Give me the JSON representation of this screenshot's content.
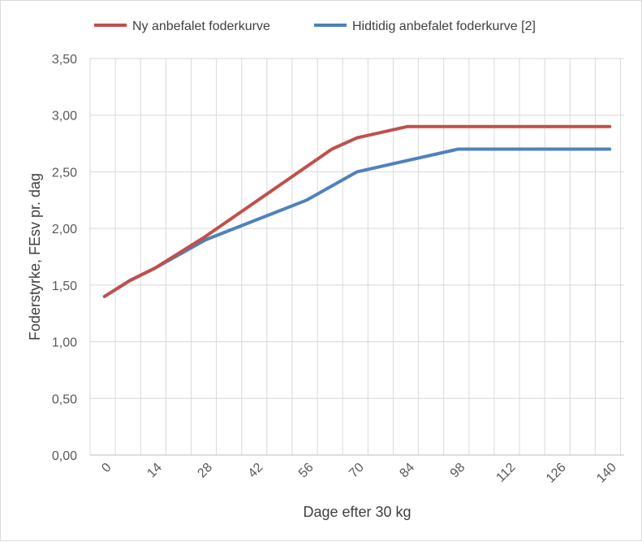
{
  "chart_data": {
    "type": "line",
    "xlabel": "Dage efter 30 kg",
    "ylabel": "Foderstyrke, FEsv pr. dag",
    "xlim": [
      -4,
      144
    ],
    "ylim": [
      0,
      3.5
    ],
    "x_ticks": [
      "0",
      "14",
      "28",
      "42",
      "56",
      "70",
      "84",
      "98",
      "112",
      "126",
      "140"
    ],
    "y_ticks": [
      "0,00",
      "0,50",
      "1,00",
      "1,50",
      "2,00",
      "2,50",
      "3,00",
      "3,50"
    ],
    "grid": true,
    "legend_position": "top",
    "series": [
      {
        "name": "Ny anbefalet foderkurve",
        "color": "#c0504d",
        "x": [
          0,
          7,
          14,
          28,
          63,
          70,
          84,
          140
        ],
        "y": [
          1.4,
          1.54,
          1.65,
          1.93,
          2.7,
          2.8,
          2.9,
          2.9
        ]
      },
      {
        "name": "Hidtidig anbefalet foderkurve [2]",
        "color": "#4f81bd",
        "x": [
          0,
          7,
          14,
          28,
          56,
          70,
          98,
          140
        ],
        "y": [
          1.4,
          1.54,
          1.65,
          1.9,
          2.25,
          2.5,
          2.7,
          2.7
        ]
      }
    ]
  }
}
